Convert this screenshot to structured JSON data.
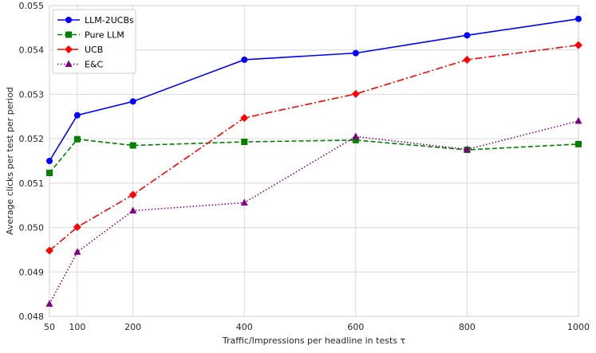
{
  "chart_data": {
    "type": "line",
    "title": "",
    "xlabel": "Traffic/Impressions per headline in tests τ",
    "ylabel": "Average clicks per test per period",
    "x": [
      50,
      100,
      200,
      400,
      600,
      800,
      1000
    ],
    "xticks": [
      "50",
      "100",
      "200",
      "400",
      "600",
      "800",
      "1000"
    ],
    "yticks": [
      "0.048",
      "0.049",
      "0.050",
      "0.051",
      "0.052",
      "0.053",
      "0.054",
      "0.055"
    ],
    "xlim": [
      50,
      1000
    ],
    "ylim": [
      0.048,
      0.055
    ],
    "grid": true,
    "legend_position": "top-left",
    "series": [
      {
        "name": "LLM-2UCBs",
        "color": "#0000ff",
        "linestyle": "solid",
        "marker": "circle",
        "values": [
          0.0515,
          0.05253,
          0.05284,
          0.05378,
          0.05393,
          0.05433,
          0.0547
        ]
      },
      {
        "name": "Pure LLM",
        "color": "#008000",
        "linestyle": "dashed",
        "marker": "square",
        "values": [
          0.05123,
          0.05199,
          0.05185,
          0.05193,
          0.05197,
          0.05175,
          0.05188
        ]
      },
      {
        "name": "UCB",
        "color": "#ff0000",
        "linestyle": "dashdot",
        "marker": "diamond",
        "values": [
          0.04948,
          0.05001,
          0.05074,
          0.05247,
          0.05301,
          0.05378,
          0.05411
        ]
      },
      {
        "name": "E&C",
        "color": "#800080",
        "linestyle": "dotted",
        "marker": "triangle",
        "values": [
          0.04828,
          0.04945,
          0.05038,
          0.05056,
          0.05205,
          0.05176,
          0.0524
        ]
      }
    ]
  }
}
